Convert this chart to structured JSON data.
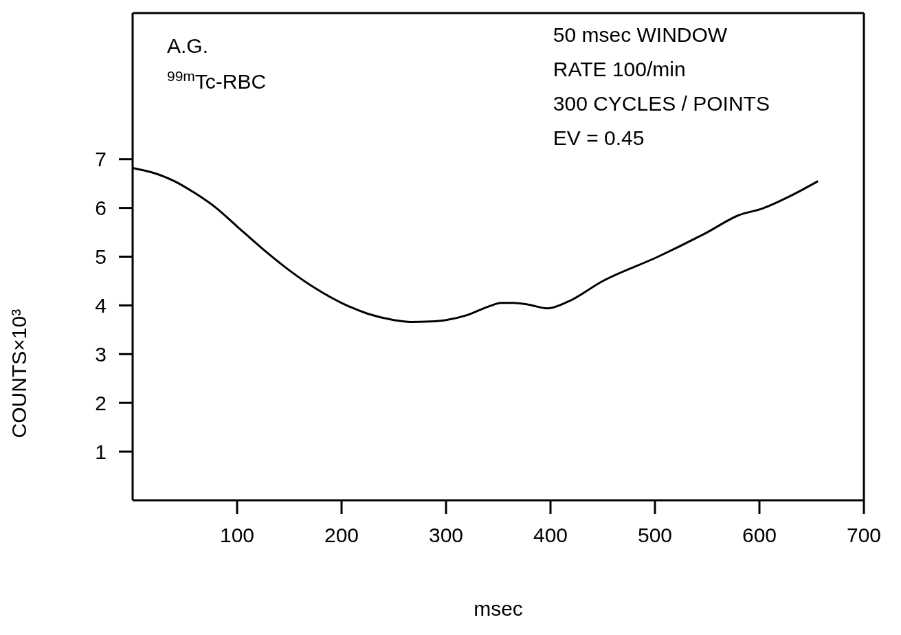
{
  "chart_data": {
    "type": "line",
    "xlabel": "msec",
    "ylabel": "COUNTS×10³",
    "annotations": [
      "A.G.",
      "$^{99m}$Tc-RBC",
      "50 msec WINDOW",
      "RATE 100/min",
      "300 CYCLES / POINTS",
      "EV = 0.45"
    ],
    "series": [
      {
        "color": "#000000",
        "x": [
          0,
          20,
          40,
          60,
          80,
          100,
          125,
          150,
          175,
          200,
          225,
          250,
          266,
          285,
          300,
          320,
          341,
          353,
          365,
          378,
          397,
          416,
          450,
          503,
          550,
          580,
          603,
          630,
          656
        ],
        "values": [
          6.82,
          6.72,
          6.55,
          6.3,
          6.0,
          5.62,
          5.15,
          4.72,
          4.35,
          4.05,
          3.83,
          3.7,
          3.66,
          3.67,
          3.7,
          3.8,
          3.98,
          4.05,
          4.05,
          4.02,
          3.94,
          4.07,
          4.5,
          5.0,
          5.5,
          5.85,
          5.99,
          6.25,
          6.55
        ]
      }
    ],
    "xlim": [
      0,
      700
    ],
    "xticks": [
      100,
      200,
      300,
      400,
      500,
      600,
      700
    ],
    "ylim": [
      0,
      10
    ],
    "yticks": [
      1,
      2,
      3,
      4,
      5,
      6,
      7
    ],
    "marker": "none",
    "line_style": "solid"
  }
}
